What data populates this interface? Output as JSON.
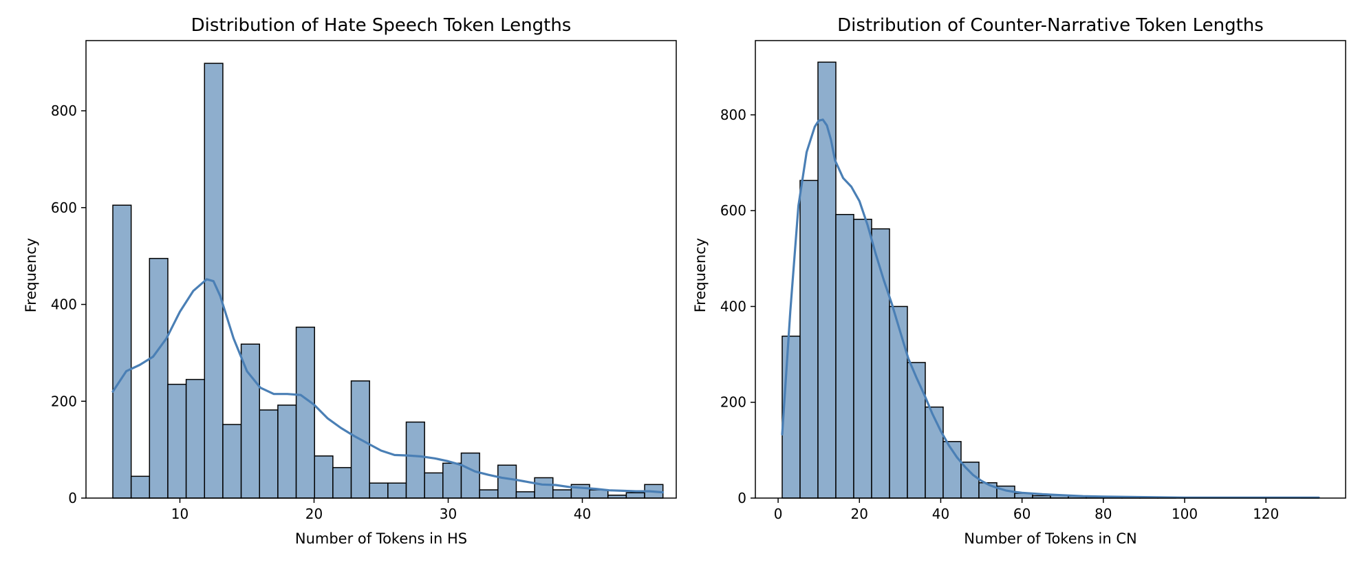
{
  "chart_data": [
    {
      "type": "bar",
      "title": "Distribution of Hate Speech Token Lengths",
      "xlabel": "Number of Tokens in HS",
      "ylabel": "Frequency",
      "xlim": [
        3,
        47
      ],
      "ylim": [
        0,
        945
      ],
      "xticks": [
        10,
        20,
        30,
        40
      ],
      "yticks": [
        0,
        200,
        400,
        600,
        800
      ],
      "bin_start": 5,
      "bin_width": 1.367,
      "values": [
        605,
        45,
        495,
        235,
        245,
        898,
        152,
        318,
        182,
        192,
        353,
        87,
        63,
        242,
        31,
        31,
        157,
        52,
        72,
        93,
        17,
        68,
        13,
        42,
        17,
        28,
        17,
        6,
        11,
        28
      ],
      "kde": {
        "x": [
          5,
          6,
          7,
          8,
          9,
          10,
          11,
          12,
          12.5,
          13,
          14,
          15,
          16,
          17,
          18,
          19,
          20,
          21,
          22,
          23,
          24,
          25,
          26,
          27,
          28,
          29,
          30,
          31,
          32,
          33,
          34,
          35,
          36,
          37,
          38,
          39,
          40,
          41,
          42,
          43,
          44,
          45,
          46
        ],
        "y": [
          220,
          262,
          275,
          292,
          330,
          385,
          428,
          452,
          448,
          418,
          330,
          262,
          228,
          215,
          215,
          213,
          193,
          165,
          145,
          128,
          113,
          98,
          89,
          88,
          86,
          82,
          76,
          68,
          55,
          48,
          42,
          38,
          33,
          28,
          27,
          23,
          21,
          19,
          16,
          15,
          14,
          14,
          12
        ]
      }
    },
    {
      "type": "bar",
      "title": "Distribution of Counter-Narrative Token Lengths",
      "xlabel": "Number of Tokens in CN",
      "ylabel": "Frequency",
      "xlim": [
        -5.6,
        139.6
      ],
      "ylim": [
        0,
        955
      ],
      "xticks": [
        0,
        20,
        40,
        60,
        80,
        100,
        120
      ],
      "yticks": [
        0,
        200,
        400,
        600,
        800
      ],
      "bin_start": 1,
      "bin_width": 4.4,
      "values": [
        338,
        663,
        910,
        592,
        582,
        562,
        400,
        283,
        190,
        118,
        75,
        32,
        25,
        10,
        5,
        6,
        4,
        3,
        2,
        1,
        1,
        1,
        0,
        0,
        0,
        0,
        0,
        0,
        0,
        1
      ],
      "kde": {
        "x": [
          1,
          3,
          5,
          7,
          9,
          10,
          11,
          12,
          13,
          14,
          16,
          18,
          20,
          22,
          24,
          26,
          28,
          30,
          32,
          34,
          36,
          38,
          40,
          42,
          44,
          46,
          48,
          50,
          52,
          54,
          56,
          58,
          60,
          65,
          70,
          75,
          80,
          90,
          100,
          110,
          120,
          133
        ],
        "y": [
          133,
          390,
          610,
          722,
          775,
          788,
          790,
          778,
          748,
          705,
          668,
          650,
          620,
          570,
          510,
          455,
          405,
          348,
          292,
          252,
          215,
          175,
          140,
          110,
          85,
          65,
          48,
          36,
          27,
          21,
          16,
          13,
          11,
          8,
          6,
          4,
          3,
          2,
          1,
          1,
          1,
          1
        ]
      }
    }
  ]
}
